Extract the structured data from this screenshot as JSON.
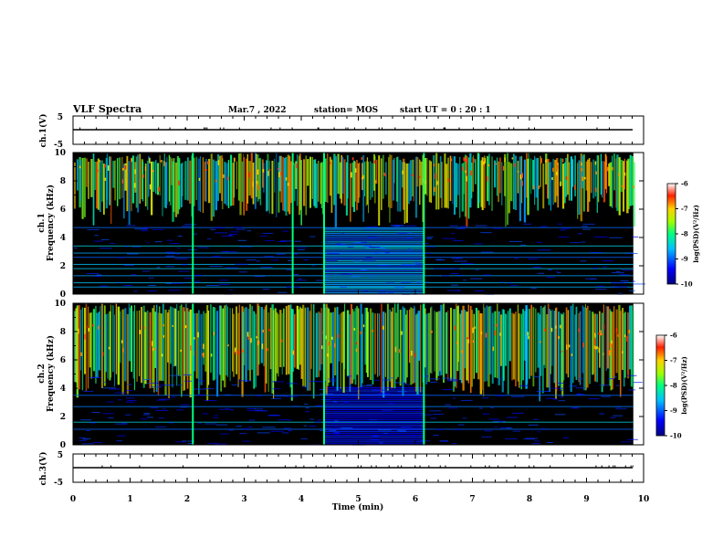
{
  "header": {
    "title": "VLF Spectra",
    "date": "Mar.7 , 2022",
    "station": "station= MOS",
    "start": "start UT =  0 : 20 : 1"
  },
  "chart_data": [
    {
      "type": "line",
      "name": "waveform-ch1",
      "ylabel": "ch.1(V)",
      "ylim": [
        -5,
        5
      ],
      "yticks": [
        "5",
        "-5"
      ],
      "xlim": [
        0,
        10
      ]
    },
    {
      "type": "heatmap",
      "name": "spectrogram-ch1",
      "ylabel": "ch.1\nFrequency (kHz)",
      "ylabel_lines": [
        "ch.1",
        "Frequency (kHz)"
      ],
      "ylim": [
        0,
        10
      ],
      "yticks": [
        "0",
        "2",
        "4",
        "6",
        "8",
        "10"
      ],
      "xlim": [
        0,
        10
      ],
      "colorbar": {
        "range": [
          -10,
          -6
        ],
        "ticks": [
          "-6",
          "-7",
          "-8",
          "-9",
          "-10"
        ],
        "label": "log(PSD)(V²/Hz)"
      },
      "lines_khz": [
        0.5,
        0.8,
        1.3,
        1.8,
        2.1,
        2.6,
        2.9,
        3.4,
        4.7
      ],
      "vertical_events_min": [
        2.1,
        3.85,
        4.4,
        6.15
      ],
      "broadband_window_min": [
        4.4,
        6.15
      ]
    },
    {
      "type": "heatmap",
      "name": "spectrogram-ch2",
      "ylabel": "ch.2\nFrequency (kHz)",
      "ylabel_lines": [
        "ch.2",
        "Frequency (kHz)"
      ],
      "ylim": [
        0,
        10
      ],
      "yticks": [
        "0",
        "2",
        "4",
        "6",
        "8",
        "10"
      ],
      "xlim": [
        0,
        10
      ],
      "colorbar": {
        "range": [
          -10,
          -6
        ],
        "ticks": [
          "-6",
          "-7",
          "-8",
          "-9",
          "-10"
        ],
        "label": "log(PSD)(V²/Hz)"
      },
      "lines_khz": [
        1.1,
        1.6,
        2.7,
        3.5
      ],
      "vertical_events_min": [
        2.1,
        4.4,
        6.15
      ],
      "broadband_window_min": [
        4.4,
        6.15
      ]
    },
    {
      "type": "line",
      "name": "waveform-ch3",
      "ylabel": "ch.3(V)",
      "ylim": [
        -5,
        5
      ],
      "yticks": [
        "5",
        "-5"
      ],
      "xlabel": "Time (min)",
      "xlim": [
        0,
        10
      ],
      "xticks": [
        "0",
        "1",
        "2",
        "3",
        "4",
        "5",
        "6",
        "7",
        "8",
        "9",
        "10"
      ]
    }
  ]
}
